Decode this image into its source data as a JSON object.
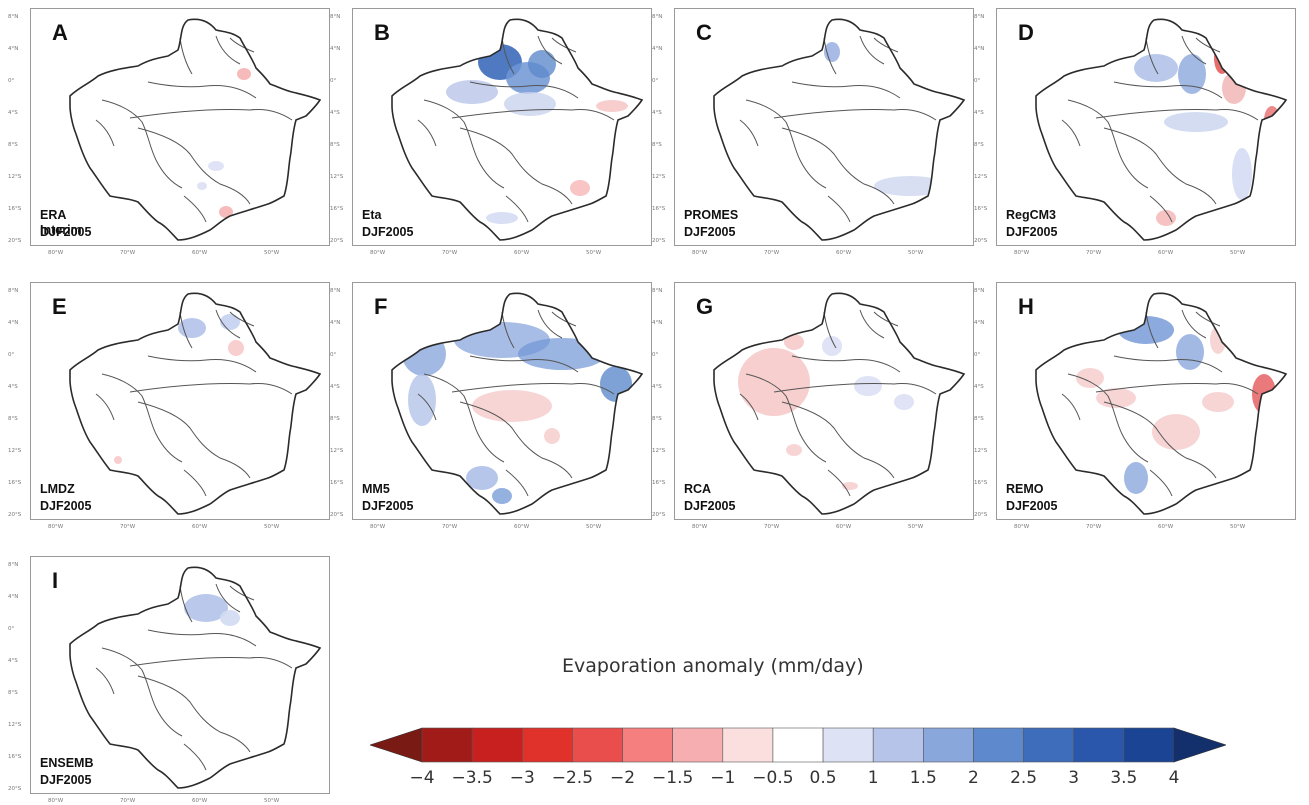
{
  "panels": [
    {
      "letter": "A",
      "model": "ERA Interim",
      "period": "DJF2005"
    },
    {
      "letter": "B",
      "model": "Eta",
      "period": "DJF2005"
    },
    {
      "letter": "C",
      "model": "PROMES",
      "period": "DJF2005"
    },
    {
      "letter": "D",
      "model": "RegCM3",
      "period": "DJF2005"
    },
    {
      "letter": "E",
      "model": "LMDZ",
      "period": "DJF2005"
    },
    {
      "letter": "F",
      "model": "MM5",
      "period": "DJF2005"
    },
    {
      "letter": "G",
      "model": "RCA",
      "period": "DJF2005"
    },
    {
      "letter": "H",
      "model": "REMO",
      "period": "DJF2005"
    },
    {
      "letter": "I",
      "model": "ENSEMB",
      "period": "DJF2005"
    }
  ],
  "map_axes": {
    "lat_ticks": [
      "8°N",
      "4°N",
      "0°",
      "4°S",
      "8°S",
      "12°S",
      "16°S",
      "20°S"
    ],
    "lon_ticks": [
      "80°W",
      "70°W",
      "60°W",
      "50°W"
    ]
  },
  "colorbar": {
    "title": "Evaporation anomaly (mm/day)",
    "ticks": [
      "−4",
      "−3.5",
      "−3",
      "−2.5",
      "−2",
      "−1.5",
      "−1",
      "−0.5",
      "0.5",
      "1",
      "1.5",
      "2",
      "2.5",
      "3",
      "3.5",
      "4"
    ],
    "colors": [
      "#7a1a14",
      "#a11b18",
      "#c8201f",
      "#e0312b",
      "#ea4e4c",
      "#f47f7e",
      "#f6aeb0",
      "#fbdfdf",
      "#ffffff",
      "#dde2f5",
      "#b5c4e8",
      "#8aa7dc",
      "#5e89cc",
      "#3e6dbc",
      "#2a57ab",
      "#1c4494",
      "#13306d"
    ]
  },
  "colors": {
    "outline": "#2b2b2b",
    "river": "#555555",
    "frame": "#9a9a9a"
  }
}
